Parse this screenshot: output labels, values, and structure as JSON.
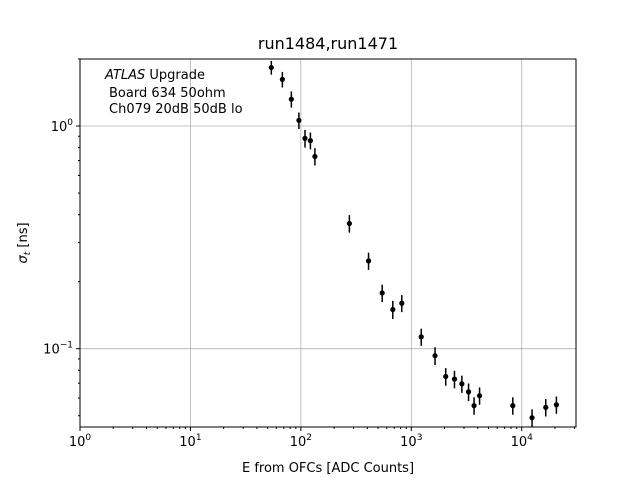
{
  "chart_data": {
    "type": "scatter",
    "title": "run1484,run1471",
    "xlabel": "E from OFCs [ADC Counts]",
    "ylabel_main": "σ",
    "ylabel_sub": "t",
    "ylabel_unit": " [ns]",
    "xscale": "log",
    "yscale": "log",
    "xlim": [
      1,
      31000
    ],
    "ylim": [
      0.0445,
      2.0
    ],
    "grid": true,
    "annotation": {
      "italic": "ATLAS",
      "line1_rest": " Upgrade",
      "line2": "Board 634 50ohm",
      "line3": "Ch079 20dB 50dB  lo"
    },
    "x_ticks": [
      {
        "value": 1,
        "base": "10",
        "exp": "0"
      },
      {
        "value": 10,
        "base": "10",
        "exp": "1"
      },
      {
        "value": 100,
        "base": "10",
        "exp": "2"
      },
      {
        "value": 1000,
        "base": "10",
        "exp": "3"
      },
      {
        "value": 10000,
        "base": "10",
        "exp": "4"
      }
    ],
    "y_ticks": [
      {
        "value": 0.1,
        "base": "10",
        "exp": "−1"
      },
      {
        "value": 1,
        "base": "10",
        "exp": "0"
      }
    ],
    "points": [
      {
        "x": 54,
        "y": 1.83,
        "err": 0.13
      },
      {
        "x": 68,
        "y": 1.62,
        "err": 0.13
      },
      {
        "x": 82,
        "y": 1.32,
        "err": 0.11
      },
      {
        "x": 96,
        "y": 1.06,
        "err": 0.09
      },
      {
        "x": 109,
        "y": 0.88,
        "err": 0.08
      },
      {
        "x": 122,
        "y": 0.86,
        "err": 0.075
      },
      {
        "x": 134,
        "y": 0.73,
        "err": 0.065
      },
      {
        "x": 275,
        "y": 0.365,
        "err": 0.033
      },
      {
        "x": 410,
        "y": 0.248,
        "err": 0.022
      },
      {
        "x": 545,
        "y": 0.178,
        "err": 0.016
      },
      {
        "x": 680,
        "y": 0.15,
        "err": 0.014
      },
      {
        "x": 820,
        "y": 0.16,
        "err": 0.014
      },
      {
        "x": 1230,
        "y": 0.113,
        "err": 0.01
      },
      {
        "x": 1640,
        "y": 0.093,
        "err": 0.0085
      },
      {
        "x": 2050,
        "y": 0.075,
        "err": 0.0068
      },
      {
        "x": 2460,
        "y": 0.073,
        "err": 0.0066
      },
      {
        "x": 2870,
        "y": 0.0695,
        "err": 0.0062
      },
      {
        "x": 3300,
        "y": 0.064,
        "err": 0.0058
      },
      {
        "x": 3700,
        "y": 0.0555,
        "err": 0.005
      },
      {
        "x": 4150,
        "y": 0.0615,
        "err": 0.0055
      },
      {
        "x": 8300,
        "y": 0.0555,
        "err": 0.005
      },
      {
        "x": 12400,
        "y": 0.049,
        "err": 0.0044
      },
      {
        "x": 16500,
        "y": 0.0545,
        "err": 0.0049
      },
      {
        "x": 20600,
        "y": 0.056,
        "err": 0.005
      }
    ]
  }
}
